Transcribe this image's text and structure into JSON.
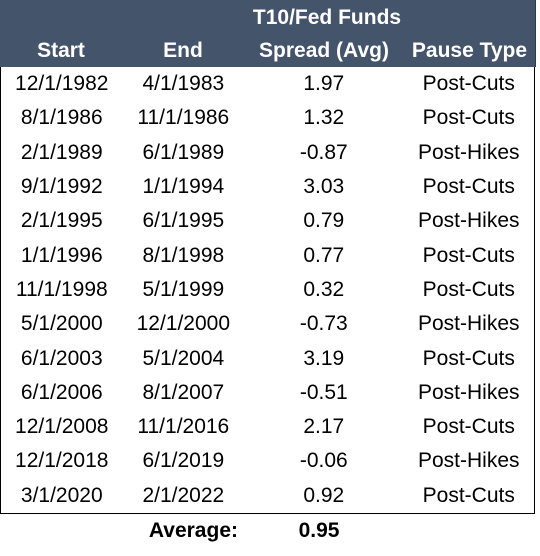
{
  "header": {
    "group_label": "T10/Fed Funds",
    "columns": [
      "Start",
      "End",
      "Spread (Avg)",
      "Pause Type"
    ]
  },
  "rows": [
    {
      "start": "12/1/1982",
      "end": "4/1/1983",
      "spread": "1.97",
      "type": "Post-Cuts"
    },
    {
      "start": "8/1/1986",
      "end": "11/1/1986",
      "spread": "1.32",
      "type": "Post-Cuts"
    },
    {
      "start": "2/1/1989",
      "end": "6/1/1989",
      "spread": "-0.87",
      "type": "Post-Hikes"
    },
    {
      "start": "9/1/1992",
      "end": "1/1/1994",
      "spread": "3.03",
      "type": "Post-Cuts"
    },
    {
      "start": "2/1/1995",
      "end": "6/1/1995",
      "spread": "0.79",
      "type": "Post-Hikes"
    },
    {
      "start": "1/1/1996",
      "end": "8/1/1998",
      "spread": "0.77",
      "type": "Post-Cuts"
    },
    {
      "start": "11/1/1998",
      "end": "5/1/1999",
      "spread": "0.32",
      "type": "Post-Cuts"
    },
    {
      "start": "5/1/2000",
      "end": "12/1/2000",
      "spread": "-0.73",
      "type": "Post-Hikes"
    },
    {
      "start": "6/1/2003",
      "end": "5/1/2004",
      "spread": "3.19",
      "type": "Post-Cuts"
    },
    {
      "start": "6/1/2006",
      "end": "8/1/2007",
      "spread": "-0.51",
      "type": "Post-Hikes"
    },
    {
      "start": "12/1/2008",
      "end": "11/1/2016",
      "spread": "2.17",
      "type": "Post-Cuts"
    },
    {
      "start": "12/1/2018",
      "end": "6/1/2019",
      "spread": "-0.06",
      "type": "Post-Hikes"
    },
    {
      "start": "3/1/2020",
      "end": "2/1/2022",
      "spread": "0.92",
      "type": "Post-Cuts"
    }
  ],
  "footer": {
    "label": "Average:",
    "value": "0.95"
  },
  "colors": {
    "header_bg": "#44546a",
    "header_text": "#ffffff"
  }
}
